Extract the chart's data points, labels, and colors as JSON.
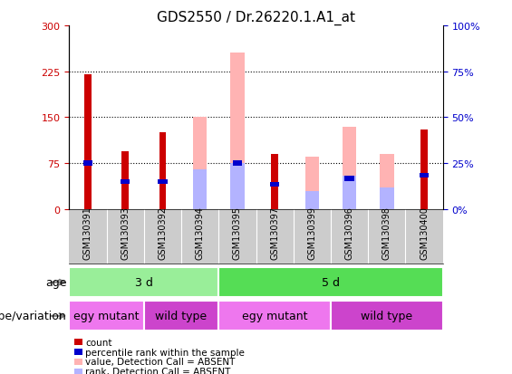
{
  "title": "GDS2550 / Dr.26220.1.A1_at",
  "samples": [
    "GSM130391",
    "GSM130393",
    "GSM130392",
    "GSM130394",
    "GSM130395",
    "GSM130397",
    "GSM130399",
    "GSM130396",
    "GSM130398",
    "GSM130400"
  ],
  "left_ylim": [
    0,
    300
  ],
  "right_ylim": [
    0,
    100
  ],
  "left_yticks": [
    0,
    75,
    150,
    225,
    300
  ],
  "right_yticks": [
    0,
    25,
    50,
    75,
    100
  ],
  "right_yticklabels": [
    "0%",
    "25%",
    "50%",
    "75%",
    "100%"
  ],
  "count_values": [
    220,
    95,
    125,
    0,
    0,
    90,
    0,
    0,
    0,
    130
  ],
  "rank_values": [
    75,
    45,
    45,
    0,
    75,
    40,
    0,
    50,
    0,
    55
  ],
  "absent_value_values": [
    0,
    0,
    0,
    150,
    255,
    0,
    85,
    135,
    90,
    0
  ],
  "absent_rank_values": [
    0,
    0,
    0,
    65,
    75,
    0,
    30,
    55,
    35,
    0
  ],
  "count_color": "#cc0000",
  "rank_color": "#0000cc",
  "absent_value_color": "#ffb3b3",
  "absent_rank_color": "#b3b3ff",
  "age_groups": [
    {
      "label": "3 d",
      "start": 0,
      "end": 4,
      "color": "#99ee99"
    },
    {
      "label": "5 d",
      "start": 4,
      "end": 10,
      "color": "#55dd55"
    }
  ],
  "genotype_groups": [
    {
      "label": "egy mutant",
      "start": 0,
      "end": 2,
      "color": "#ee77ee"
    },
    {
      "label": "wild type",
      "start": 2,
      "end": 4,
      "color": "#cc44cc"
    },
    {
      "label": "egy mutant",
      "start": 4,
      "end": 7,
      "color": "#ee77ee"
    },
    {
      "label": "wild type",
      "start": 7,
      "end": 10,
      "color": "#cc44cc"
    }
  ],
  "legend_items": [
    {
      "label": "count",
      "color": "#cc0000"
    },
    {
      "label": "percentile rank within the sample",
      "color": "#0000cc"
    },
    {
      "label": "value, Detection Call = ABSENT",
      "color": "#ffb3b3"
    },
    {
      "label": "rank, Detection Call = ABSENT",
      "color": "#b3b3ff"
    }
  ],
  "age_label": "age",
  "genotype_label": "genotype/variation",
  "bg_color": "#ffffff",
  "tick_label_color_left": "#cc0000",
  "tick_label_color_right": "#0000cc",
  "tick_label_size": 8,
  "title_size": 11,
  "sample_label_size": 7
}
